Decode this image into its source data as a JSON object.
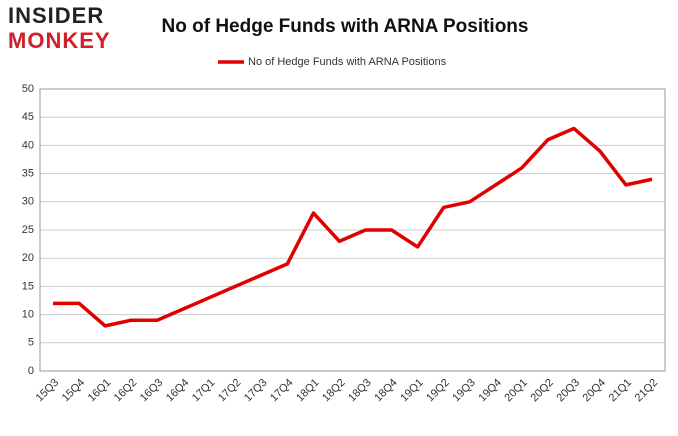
{
  "logo": {
    "line1": "INSIDER",
    "line2": "MONKEY"
  },
  "chart_data": {
    "type": "line",
    "title": "No of Hedge Funds with ARNA Positions",
    "categories": [
      "15Q3",
      "15Q4",
      "16Q1",
      "16Q2",
      "16Q3",
      "16Q4",
      "17Q1",
      "17Q2",
      "17Q3",
      "17Q4",
      "18Q1",
      "18Q2",
      "18Q3",
      "18Q4",
      "19Q1",
      "19Q2",
      "19Q3",
      "19Q4",
      "20Q1",
      "20Q2",
      "20Q3",
      "20Q4",
      "21Q1",
      "21Q2"
    ],
    "series": [
      {
        "name": "No of Hedge Funds with ARNA Positions",
        "color": "#e00000",
        "values": [
          12,
          12,
          8,
          9,
          9,
          11,
          13,
          15,
          17,
          19,
          28,
          23,
          25,
          25,
          22,
          29,
          30,
          33,
          36,
          41,
          43,
          39,
          33,
          34
        ]
      }
    ],
    "ylim": [
      0,
      50
    ],
    "yticks": [
      0,
      5,
      10,
      15,
      20,
      25,
      30,
      35,
      40,
      45,
      50
    ],
    "grid": true,
    "legend": "top"
  }
}
